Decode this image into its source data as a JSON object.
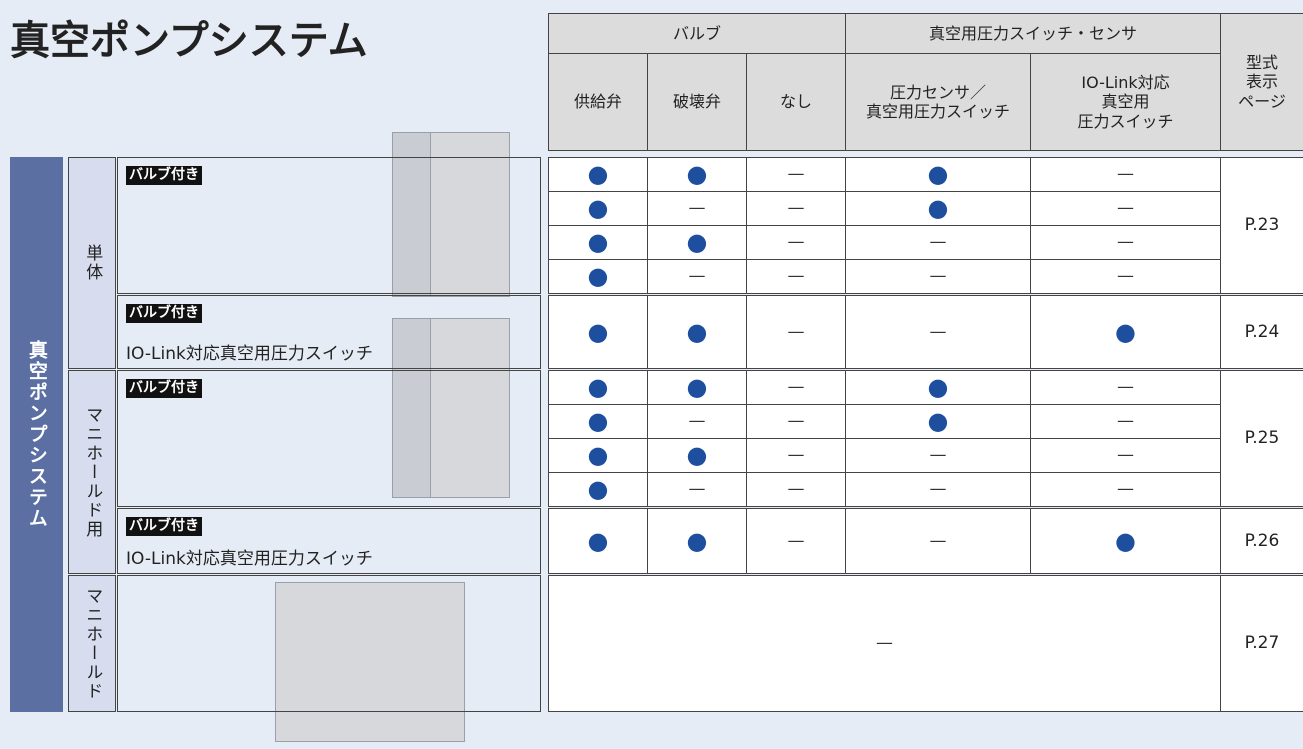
{
  "title": "真空ポンプシステム",
  "table": {
    "header": {
      "valve": "バルブ",
      "switch": "真空用圧力スイッチ・センサ",
      "page": [
        "型式",
        "表示",
        "ページ"
      ],
      "columns": [
        [
          "供給弁"
        ],
        [
          "破壊弁"
        ],
        [
          "なし"
        ],
        [
          "圧力センサ／",
          "真空用圧力スイッチ"
        ],
        [
          "IO-Link対応",
          "真空用",
          "圧力スイッチ"
        ]
      ]
    },
    "category": "真空ポンプシステム",
    "groups": [
      {
        "label": "単体",
        "items": [
          {
            "tag": "バルブ付き",
            "rows": [
              [
                "●",
                "●",
                "—",
                "●",
                "—"
              ],
              [
                "●",
                "—",
                "—",
                "●",
                "—"
              ],
              [
                "●",
                "●",
                "—",
                "—",
                "—"
              ],
              [
                "●",
                "—",
                "—",
                "—",
                "—"
              ]
            ],
            "page": "P.23"
          },
          {
            "tag": "バルブ付き",
            "subtitle": "IO-Link対応真空用圧力スイッチ",
            "rows": [
              [
                "●",
                "●",
                "—",
                "—",
                "●"
              ]
            ],
            "page": "P.24"
          }
        ]
      },
      {
        "label": "マニホールド用",
        "items": [
          {
            "tag": "バルブ付き",
            "rows": [
              [
                "●",
                "●",
                "—",
                "●",
                "—"
              ],
              [
                "●",
                "—",
                "—",
                "●",
                "—"
              ],
              [
                "●",
                "●",
                "—",
                "—",
                "—"
              ],
              [
                "●",
                "—",
                "—",
                "—",
                "—"
              ]
            ],
            "page": "P.25"
          },
          {
            "tag": "バルブ付き",
            "subtitle": "IO-Link対応真空用圧力スイッチ",
            "rows": [
              [
                "●",
                "●",
                "—",
                "—",
                "●"
              ]
            ],
            "page": "P.26"
          }
        ]
      },
      {
        "label": "マニホールド",
        "items": [
          {
            "rows": [
              [
                "—"
              ]
            ],
            "page": "P.27"
          }
        ]
      }
    ]
  }
}
